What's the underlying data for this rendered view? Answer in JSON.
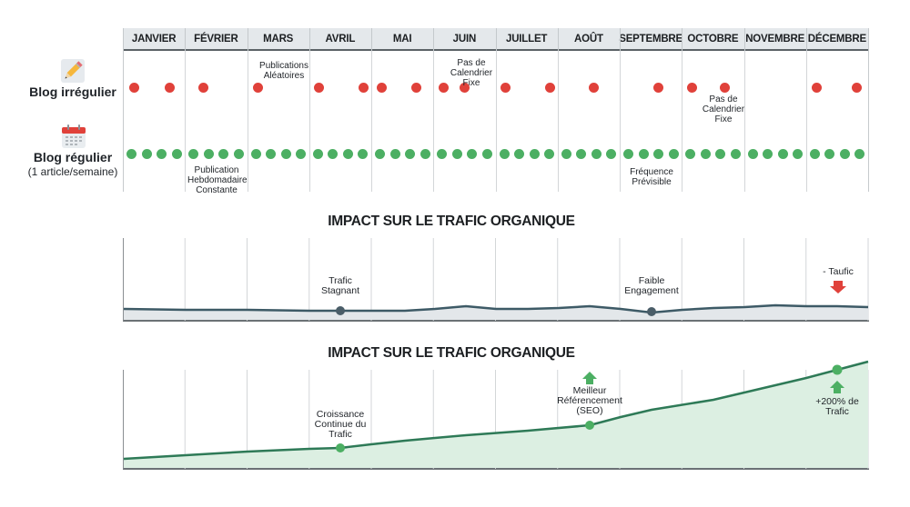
{
  "months": [
    "JANVIER",
    "FÉVRIER",
    "MARS",
    "AVRIL",
    "MAI",
    "JUIN",
    "JUILLET",
    "AOÛT",
    "SEPTEMBRE",
    "OCTOBRE",
    "NOVEMBRE",
    "DÉCEMBRE"
  ],
  "rows": {
    "irregular": {
      "label": "Blog irrégulier",
      "icon": "pencil-icon"
    },
    "regular": {
      "label": "Blog régulier",
      "sublabel": "(1 article/semaine)",
      "icon": "calendar-icon"
    }
  },
  "annotations": {
    "irregular_mars": "Publications Aléatoires",
    "irregular_juin": "Pas de Calendrier Fixe",
    "irregular_octobre": "Pas de Calendrier Fixe",
    "regular_fevrier": "Publication Hebdomadaire Constante",
    "regular_septembre": "Fréquence Prévisible"
  },
  "impact_irregular": {
    "title": "IMPACT SUR LE TRAFIC ORGANIQUE",
    "label_stagnant": "Trafic Stagnant",
    "label_engagement": "Faible Engagement",
    "label_drop": "- Taufic"
  },
  "impact_regular": {
    "title": "IMPACT SUR LE TRAFIC ORGANIQUE",
    "label_growth": "Croissance Continue du Trafic",
    "label_seo": "Meilleur Référencement (SEO)",
    "label_200": "+200% de Trafic"
  },
  "colors": {
    "red_dot": "#e0413a",
    "green_dot": "#4caf63",
    "irregular_line": "#3d5a66",
    "regular_line": "#2e7a57",
    "regular_fill": "#dcefe2",
    "irregular_fill": "#e3e7ea"
  },
  "chart_data": [
    {
      "type": "scatter",
      "title": "Fréquence de publication",
      "categories": [
        "JANVIER",
        "FÉVRIER",
        "MARS",
        "AVRIL",
        "MAI",
        "JUIN",
        "JUILLET",
        "AOÛT",
        "SEPTEMBRE",
        "OCTOBRE",
        "NOVEMBRE",
        "DÉCEMBRE"
      ],
      "series": [
        {
          "name": "Blog irrégulier",
          "posts_per_month": [
            2,
            1,
            1,
            2,
            2,
            2,
            2,
            1,
            1,
            2,
            0,
            2
          ]
        },
        {
          "name": "Blog régulier (1 article/semaine)",
          "posts_per_month": [
            4,
            4,
            4,
            4,
            4,
            4,
            4,
            4,
            4,
            4,
            4,
            4
          ]
        }
      ]
    },
    {
      "type": "area",
      "title": "IMPACT SUR LE TRAFIC ORGANIQUE",
      "series_name": "Blog irrégulier",
      "x": [
        "JANVIER",
        "FÉVRIER",
        "MARS",
        "AVRIL",
        "MAI",
        "JUIN",
        "JUILLET",
        "AOÛT",
        "SEPTEMBRE",
        "OCTOBRE",
        "NOVEMBRE",
        "DÉCEMBRE"
      ],
      "values": [
        10,
        10,
        10,
        9,
        9,
        11,
        10,
        11,
        8,
        10,
        11,
        11
      ],
      "annotations": [
        "Trafic Stagnant (Avril)",
        "Faible Engagement (Septembre)",
        "- Taufic (Décembre)"
      ],
      "ylim": [
        0,
        100
      ],
      "grid": true,
      "legend": false
    },
    {
      "type": "area",
      "title": "IMPACT SUR LE TRAFIC ORGANIQUE",
      "series_name": "Blog régulier",
      "x": [
        "JANVIER",
        "FÉVRIER",
        "MARS",
        "AVRIL",
        "MAI",
        "JUIN",
        "JUILLET",
        "AOÛT",
        "SEPTEMBRE",
        "OCTOBRE",
        "NOVEMBRE",
        "DÉCEMBRE"
      ],
      "values": [
        5,
        10,
        15,
        20,
        28,
        33,
        40,
        52,
        68,
        78,
        90,
        105
      ],
      "annotations": [
        "Croissance Continue du Trafic (Avril)",
        "Meilleur Référencement (SEO) (Août)",
        "+200% de Trafic (Décembre)"
      ],
      "ylim": [
        0,
        110
      ],
      "grid": true,
      "legend": false
    }
  ]
}
